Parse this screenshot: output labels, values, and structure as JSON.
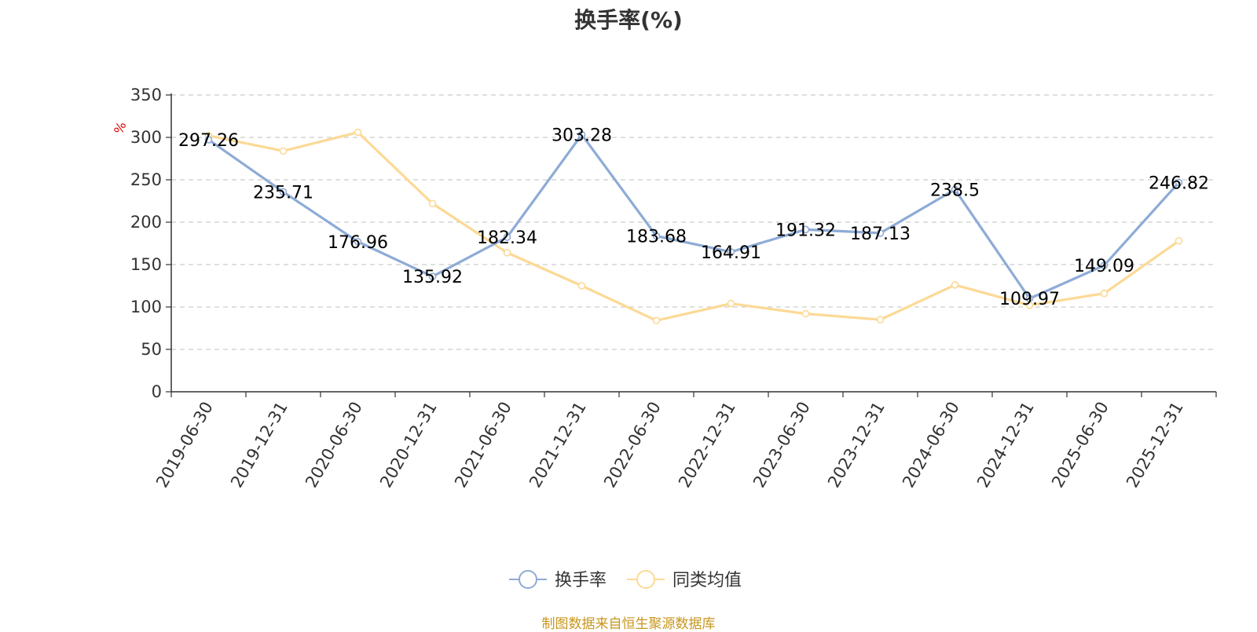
{
  "chart_data": {
    "type": "line",
    "title": "换手率(%)",
    "ylabel": "%",
    "xlabel": "",
    "ylim": [
      0,
      350
    ],
    "yticks": [
      0,
      50,
      100,
      150,
      200,
      250,
      300,
      350
    ],
    "grid": true,
    "legend_position": "bottom-center",
    "categories": [
      "2019-06-30",
      "2019-12-31",
      "2020-06-30",
      "2020-12-31",
      "2021-06-30",
      "2021-12-31",
      "2022-06-30",
      "2022-12-31",
      "2023-06-30",
      "2023-12-31",
      "2024-06-30",
      "2024-12-31",
      "2025-06-30",
      "2025-12-31"
    ],
    "series": [
      {
        "name": "换手率",
        "color": "#8eabd6",
        "values": [
          297.26,
          235.71,
          176.96,
          135.92,
          182.34,
          303.28,
          183.68,
          164.91,
          191.32,
          187.13,
          238.5,
          109.97,
          149.09,
          246.82
        ],
        "labels": [
          "297.26",
          "235.71",
          "176.96",
          "135.92",
          "182.34",
          "303.28",
          "183.68",
          "164.91",
          "191.32",
          "187.13",
          "238.5",
          "109.97",
          "149.09",
          "246.82"
        ]
      },
      {
        "name": "同类均值",
        "color": "#fcd995",
        "values": [
          302,
          284,
          306,
          222,
          164,
          125,
          84,
          104,
          92,
          85,
          126,
          102,
          116,
          178
        ]
      }
    ]
  },
  "source_note": "制图数据来自恒生聚源数据库"
}
